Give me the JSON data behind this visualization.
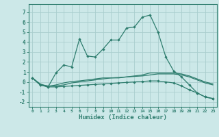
{
  "x": [
    0,
    1,
    2,
    3,
    4,
    5,
    6,
    7,
    8,
    9,
    10,
    11,
    12,
    13,
    14,
    15,
    16,
    17,
    18,
    19,
    20,
    21,
    22,
    23
  ],
  "line1": [
    0.4,
    -0.3,
    -0.5,
    0.9,
    1.7,
    1.5,
    4.3,
    2.6,
    2.5,
    3.3,
    4.2,
    4.2,
    5.4,
    5.5,
    6.5,
    6.7,
    5.0,
    2.5,
    1.1,
    0.5,
    -0.3,
    -1.1,
    -1.5,
    -1.7
  ],
  "line2": [
    0.4,
    -0.3,
    -0.4,
    -0.4,
    -0.3,
    -0.1,
    0.0,
    0.1,
    0.2,
    0.3,
    0.4,
    0.4,
    0.5,
    0.6,
    0.7,
    0.9,
    0.9,
    0.9,
    0.9,
    0.8,
    0.6,
    0.3,
    0.0,
    -0.2
  ],
  "line3": [
    0.4,
    -0.2,
    -0.45,
    -0.3,
    -0.1,
    0.05,
    0.1,
    0.2,
    0.3,
    0.4,
    0.4,
    0.45,
    0.5,
    0.55,
    0.6,
    0.7,
    0.8,
    0.8,
    0.8,
    0.7,
    0.5,
    0.2,
    -0.1,
    -0.3
  ],
  "line4": [
    0.4,
    -0.3,
    -0.5,
    -0.5,
    -0.45,
    -0.4,
    -0.35,
    -0.3,
    -0.25,
    -0.2,
    -0.15,
    -0.1,
    -0.05,
    0.0,
    0.05,
    0.1,
    0.1,
    0.0,
    -0.1,
    -0.4,
    -0.8,
    -1.1,
    -1.5,
    -1.65
  ],
  "color": "#2e7d6e",
  "bg_color": "#cce8e8",
  "grid_color": "#aacece",
  "ylim": [
    -2.5,
    7.8
  ],
  "yticks": [
    -2,
    -1,
    0,
    1,
    2,
    3,
    4,
    5,
    6,
    7
  ],
  "xlabel": "Humidex (Indice chaleur)",
  "marker": "D",
  "markersize": 2.2,
  "linewidth": 0.9
}
